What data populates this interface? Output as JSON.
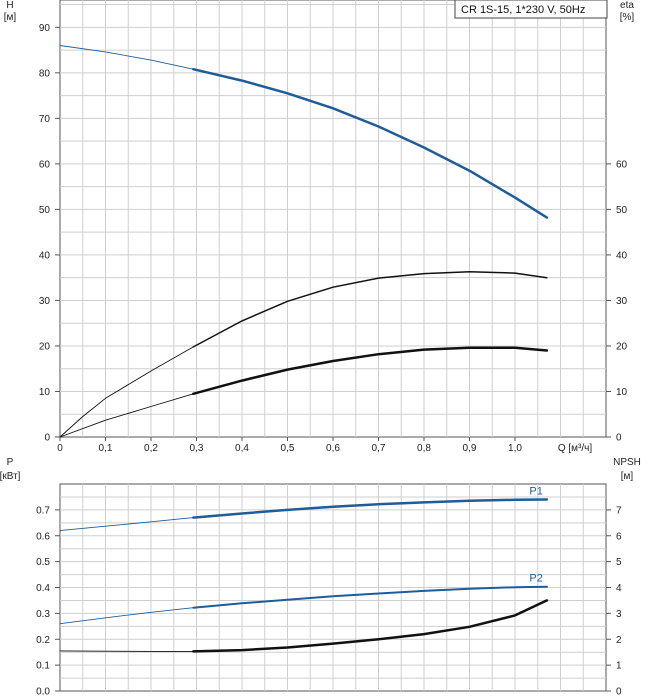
{
  "legend": {
    "text": "CR 1S-15, 1*230 V, 50Hz"
  },
  "chart_data": [
    {
      "type": "line",
      "panel": "head-efficiency",
      "left_axis": {
        "title_top": "H",
        "title_bottom": "[м]",
        "range": [
          0,
          96
        ],
        "ticks": [
          "0",
          "10",
          "20",
          "30",
          "40",
          "50",
          "60",
          "70",
          "80",
          "90"
        ]
      },
      "right_axis": {
        "title_top": "eta",
        "title_bottom": "[%]",
        "range": [
          0,
          96
        ],
        "ticks": [
          "0",
          "10",
          "20",
          "30",
          "40",
          "50",
          "60"
        ]
      },
      "x_axis": {
        "title": "Q [м³/ч]",
        "range": [
          0,
          1.2
        ],
        "ticks": [
          "0",
          "0,1",
          "0,2",
          "0,3",
          "0,4",
          "0,5",
          "0,6",
          "0,7",
          "0,8",
          "0,9",
          "1,0"
        ]
      },
      "grid": true,
      "series": [
        {
          "key": "H",
          "color": "#1f5d99",
          "width": 2.5,
          "split_x": 0.293,
          "x": [
            0,
            0.1,
            0.2,
            0.293,
            0.4,
            0.5,
            0.6,
            0.7,
            0.8,
            0.9,
            1.0,
            1.07
          ],
          "y": [
            86,
            84.6,
            82.8,
            80.8,
            78.3,
            75.5,
            72.2,
            68.2,
            63.6,
            58.5,
            52.6,
            48.2
          ]
        },
        {
          "key": "eta-total",
          "color": "#111111",
          "width": 1.5,
          "split_x": 0.293,
          "x": [
            0,
            0.05,
            0.1,
            0.2,
            0.293,
            0.4,
            0.5,
            0.6,
            0.7,
            0.8,
            0.9,
            1.0,
            1.07
          ],
          "y": [
            0,
            4.5,
            8.5,
            14.5,
            19.8,
            25.5,
            29.8,
            32.9,
            34.9,
            35.9,
            36.3,
            36.0,
            35.0
          ]
        },
        {
          "key": "eta-pump",
          "color": "#111111",
          "width": 2.5,
          "split_x": 0.293,
          "x": [
            0,
            0.1,
            0.2,
            0.293,
            0.4,
            0.5,
            0.6,
            0.7,
            0.8,
            0.9,
            1.0,
            1.07
          ],
          "y": [
            0,
            3.7,
            6.7,
            9.5,
            12.4,
            14.8,
            16.7,
            18.2,
            19.2,
            19.6,
            19.6,
            19.0
          ]
        }
      ]
    },
    {
      "type": "line",
      "panel": "power-npsh",
      "left_axis": {
        "title_top": "P",
        "title_bottom": "[кВт]",
        "range": [
          0,
          0.8
        ],
        "ticks": [
          "0.0",
          "0.1",
          "0.2",
          "0.3",
          "0.4",
          "0.5",
          "0.6",
          "0.7"
        ]
      },
      "right_axis": {
        "title_top": "NPSH",
        "title_bottom": "[м]",
        "range": [
          0,
          8
        ],
        "ticks": [
          "0",
          "1",
          "2",
          "3",
          "4",
          "5",
          "6",
          "7"
        ]
      },
      "grid": true,
      "series": [
        {
          "key": "P1",
          "name": "P1",
          "color": "#1f5d99",
          "width": 2.5,
          "split_x": 0.293,
          "x": [
            0,
            0.1,
            0.2,
            0.293,
            0.4,
            0.5,
            0.6,
            0.7,
            0.8,
            0.9,
            1.0,
            1.07
          ],
          "y": [
            0.62,
            0.637,
            0.654,
            0.67,
            0.686,
            0.7,
            0.712,
            0.722,
            0.729,
            0.735,
            0.739,
            0.74
          ]
        },
        {
          "key": "P2",
          "name": "P2",
          "color": "#1f5d99",
          "width": 2.0,
          "split_x": 0.293,
          "x": [
            0,
            0.1,
            0.2,
            0.293,
            0.4,
            0.5,
            0.6,
            0.7,
            0.8,
            0.9,
            1.0,
            1.07
          ],
          "y": [
            0.26,
            0.283,
            0.304,
            0.322,
            0.339,
            0.353,
            0.366,
            0.377,
            0.387,
            0.395,
            0.401,
            0.403
          ]
        },
        {
          "key": "NPSH",
          "color": "#111111",
          "width": 2.5,
          "split_x": 0.293,
          "x": [
            0,
            0.1,
            0.2,
            0.293,
            0.4,
            0.5,
            0.6,
            0.7,
            0.8,
            0.9,
            1.0,
            1.07
          ],
          "y": [
            1.55,
            1.54,
            1.53,
            1.53,
            1.58,
            1.68,
            1.83,
            2.0,
            2.2,
            2.48,
            2.92,
            3.5
          ]
        }
      ]
    }
  ]
}
